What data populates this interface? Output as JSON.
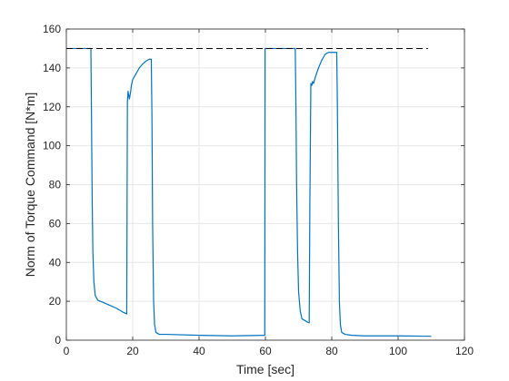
{
  "chart_data": {
    "type": "line",
    "title": "",
    "xlabel": "Time [sec]",
    "ylabel": "Norm of Torque Command [N*m]",
    "xlim": [
      0,
      120
    ],
    "ylim": [
      0,
      160
    ],
    "xticks": [
      0,
      20,
      40,
      60,
      80,
      100,
      120
    ],
    "yticks": [
      0,
      20,
      40,
      60,
      80,
      100,
      120,
      140,
      160
    ],
    "grid": true,
    "legend": "none",
    "series": [
      {
        "style": "solid",
        "color": "#0072BD",
        "x": [
          0,
          7.4,
          7.6,
          7.8,
          8.0,
          8.3,
          8.7,
          9.5,
          11,
          13,
          15,
          17,
          18.2,
          18.4,
          18.6,
          19.0,
          19.2,
          19.4,
          19.6,
          20,
          21,
          22,
          23,
          24,
          25,
          25.6,
          25.8,
          26.0,
          26.3,
          26.6,
          27,
          28,
          30,
          40,
          50,
          59.8,
          59.9,
          60.0,
          69.0,
          69.2,
          69.4,
          69.7,
          70,
          70.5,
          71,
          72,
          73,
          73.2,
          73.4,
          73.7,
          74,
          74.2,
          74.5,
          75,
          76,
          77,
          78,
          79,
          80,
          81.5,
          81.7,
          82,
          82.3,
          82.6,
          83,
          84,
          86,
          90,
          100,
          110
        ],
        "y": [
          150,
          150,
          110,
          70,
          45,
          30,
          23,
          20.5,
          19.5,
          18,
          16.5,
          14.5,
          13.5,
          122,
          128,
          124,
          126,
          128,
          131,
          134,
          137,
          140,
          142,
          143.5,
          144.5,
          144.5,
          115,
          60,
          20,
          8,
          4,
          3,
          3,
          2.5,
          2.2,
          2.5,
          150,
          150,
          150,
          120,
          80,
          45,
          25,
          15,
          11,
          10,
          9,
          9,
          70,
          132,
          131,
          133,
          132,
          135,
          140,
          144,
          147,
          148,
          148,
          148,
          120,
          60,
          20,
          8,
          4,
          3,
          2.5,
          2.2,
          2.2,
          2
        ]
      },
      {
        "style": "dashed",
        "color": "#000000",
        "x": [
          0,
          109
        ],
        "y": [
          150,
          150
        ]
      }
    ]
  }
}
